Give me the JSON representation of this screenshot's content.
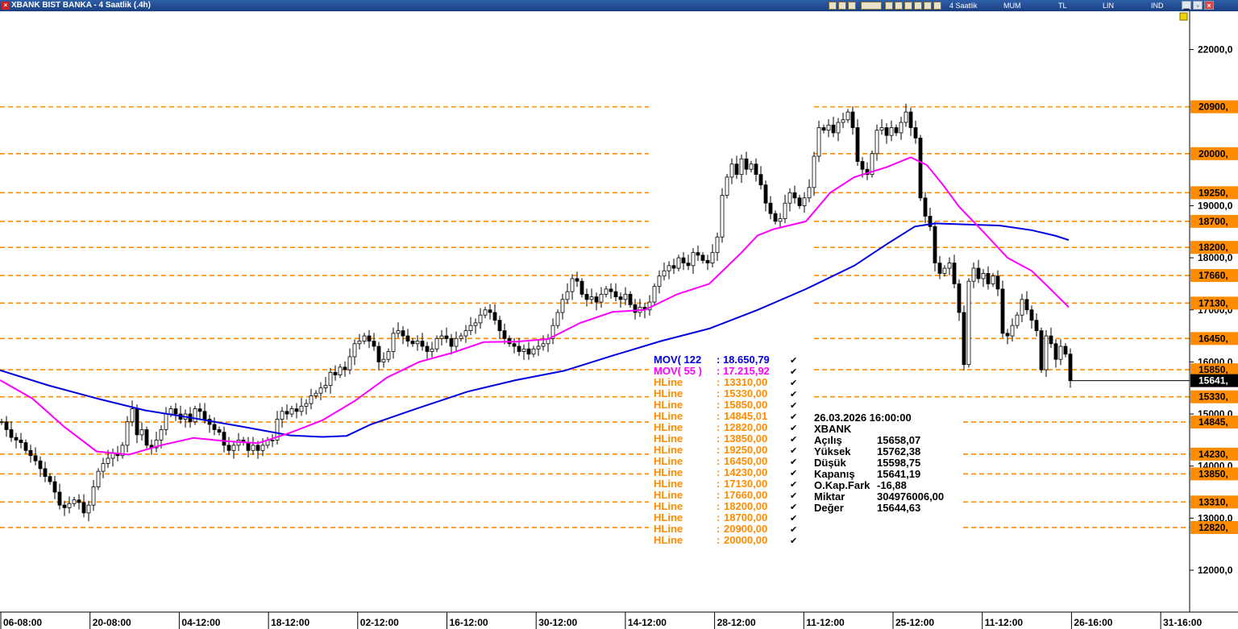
{
  "window": {
    "title": "XBANK BIST BANKA - 4 Saatlik (.4h)",
    "toolbar": {
      "period": "4 Saatlik",
      "style": "MUM",
      "currency": "TL",
      "scale": "LIN",
      "mode": "IND"
    }
  },
  "colors": {
    "background": "#ffffff",
    "hline": "#ff8c00",
    "mov122": "#0000e0",
    "mov55": "#ff00ff",
    "candle_up": "#ffffff",
    "candle_down": "#000000",
    "price_label_bg": "#000000"
  },
  "chart_data": {
    "type": "candlestick",
    "symbol": "XBANK",
    "ylim": [
      11300,
      22800
    ],
    "y_ticks": [
      {
        "v": 22000,
        "t": "22000,0"
      },
      {
        "v": 19000,
        "t": "19000,0"
      },
      {
        "v": 18000,
        "t": "18000,0"
      },
      {
        "v": 17000,
        "t": "17000,0"
      },
      {
        "v": 16000,
        "t": "16000,0"
      },
      {
        "v": 15000,
        "t": "15000,0"
      },
      {
        "v": 14000,
        "t": "14000,0"
      },
      {
        "v": 13000,
        "t": "13000,0"
      },
      {
        "v": 12000,
        "t": "12000,0"
      }
    ],
    "x_ticks": [
      "06-08:00",
      "20-08:00",
      "04-12:00",
      "18-12:00",
      "02-12:00",
      "16-12:00",
      "30-12:00",
      "14-12:00",
      "28-12:00",
      "11-12:00",
      "25-12:00",
      "11-12:00",
      "26-16:00",
      "31-16:00"
    ],
    "close_path": [
      [
        0,
        14850
      ],
      [
        6,
        14700
      ],
      [
        12,
        14550
      ],
      [
        18,
        14500
      ],
      [
        24,
        14450
      ],
      [
        30,
        14300
      ],
      [
        36,
        14200
      ],
      [
        42,
        14100
      ],
      [
        48,
        13950
      ],
      [
        54,
        13800
      ],
      [
        60,
        13700
      ],
      [
        66,
        13500
      ],
      [
        72,
        13250
      ],
      [
        78,
        13200
      ],
      [
        84,
        13280
      ],
      [
        90,
        13350
      ],
      [
        96,
        13300
      ],
      [
        102,
        13100
      ],
      [
        108,
        13250
      ],
      [
        114,
        13600
      ],
      [
        120,
        13900
      ],
      [
        126,
        14050
      ],
      [
        132,
        14150
      ],
      [
        138,
        14250
      ],
      [
        144,
        14200
      ],
      [
        150,
        14400
      ],
      [
        156,
        14850
      ],
      [
        162,
        15100
      ],
      [
        168,
        14600
      ],
      [
        174,
        14700
      ],
      [
        180,
        14400
      ],
      [
        186,
        14350
      ],
      [
        192,
        14500
      ],
      [
        198,
        14700
      ],
      [
        204,
        15000
      ],
      [
        210,
        15100
      ],
      [
        216,
        15000
      ],
      [
        222,
        14900
      ],
      [
        228,
        15000
      ],
      [
        234,
        14850
      ],
      [
        240,
        15100
      ],
      [
        246,
        15050
      ],
      [
        252,
        14900
      ],
      [
        258,
        14800
      ],
      [
        264,
        14700
      ],
      [
        270,
        14650
      ],
      [
        276,
        14400
      ],
      [
        282,
        14300
      ],
      [
        288,
        14400
      ],
      [
        294,
        14500
      ],
      [
        300,
        14450
      ],
      [
        306,
        14300
      ],
      [
        312,
        14400
      ],
      [
        318,
        14300
      ],
      [
        324,
        14400
      ],
      [
        330,
        14500
      ],
      [
        336,
        14500
      ],
      [
        342,
        14900
      ],
      [
        348,
        15050
      ],
      [
        354,
        15000
      ],
      [
        360,
        15100
      ],
      [
        366,
        15050
      ],
      [
        372,
        15150
      ],
      [
        378,
        15200
      ],
      [
        384,
        15350
      ],
      [
        390,
        15400
      ],
      [
        396,
        15500
      ],
      [
        402,
        15550
      ],
      [
        408,
        15800
      ],
      [
        414,
        15750
      ],
      [
        420,
        15900
      ],
      [
        426,
        15850
      ],
      [
        432,
        16100
      ],
      [
        438,
        16350
      ],
      [
        444,
        16400
      ],
      [
        450,
        16500
      ],
      [
        456,
        16400
      ],
      [
        462,
        16300
      ],
      [
        468,
        16000
      ],
      [
        474,
        16050
      ],
      [
        480,
        16200
      ],
      [
        486,
        16550
      ],
      [
        492,
        16600
      ],
      [
        498,
        16500
      ],
      [
        504,
        16400
      ],
      [
        510,
        16350
      ],
      [
        516,
        16400
      ],
      [
        522,
        16300
      ],
      [
        528,
        16200
      ],
      [
        534,
        16250
      ],
      [
        540,
        16450
      ],
      [
        546,
        16500
      ],
      [
        552,
        16450
      ],
      [
        558,
        16300
      ],
      [
        564,
        16450
      ],
      [
        570,
        16500
      ],
      [
        576,
        16600
      ],
      [
        582,
        16700
      ],
      [
        588,
        16750
      ],
      [
        594,
        16900
      ],
      [
        600,
        17000
      ],
      [
        606,
        16950
      ],
      [
        612,
        16800
      ],
      [
        618,
        16600
      ],
      [
        624,
        16450
      ],
      [
        630,
        16350
      ],
      [
        636,
        16300
      ],
      [
        642,
        16200
      ],
      [
        648,
        16250
      ],
      [
        654,
        16150
      ],
      [
        660,
        16250
      ],
      [
        666,
        16300
      ],
      [
        672,
        16350
      ],
      [
        678,
        16450
      ],
      [
        684,
        16700
      ],
      [
        690,
        16950
      ],
      [
        696,
        17200
      ],
      [
        702,
        17350
      ],
      [
        708,
        17600
      ],
      [
        714,
        17550
      ],
      [
        720,
        17300
      ],
      [
        726,
        17200
      ],
      [
        732,
        17250
      ],
      [
        738,
        17150
      ],
      [
        744,
        17300
      ],
      [
        750,
        17400
      ],
      [
        756,
        17350
      ],
      [
        762,
        17250
      ],
      [
        768,
        17200
      ],
      [
        774,
        17300
      ],
      [
        780,
        17100
      ],
      [
        786,
        16950
      ],
      [
        792,
        17050
      ],
      [
        798,
        17000
      ],
      [
        804,
        17150
      ],
      [
        810,
        17450
      ],
      [
        816,
        17650
      ],
      [
        822,
        17750
      ],
      [
        828,
        17850
      ],
      [
        834,
        17800
      ],
      [
        840,
        18000
      ],
      [
        846,
        17900
      ],
      [
        852,
        17850
      ],
      [
        858,
        18100
      ],
      [
        864,
        18050
      ],
      [
        870,
        17950
      ],
      [
        876,
        17900
      ],
      [
        882,
        18100
      ],
      [
        888,
        18400
      ],
      [
        894,
        19200
      ],
      [
        900,
        19550
      ],
      [
        906,
        19800
      ],
      [
        912,
        19600
      ],
      [
        918,
        19900
      ],
      [
        924,
        19700
      ],
      [
        930,
        19800
      ],
      [
        936,
        19600
      ],
      [
        942,
        19400
      ],
      [
        948,
        19050
      ],
      [
        954,
        18850
      ],
      [
        960,
        18700
      ],
      [
        966,
        18750
      ],
      [
        972,
        19050
      ],
      [
        978,
        19250
      ],
      [
        984,
        19150
      ],
      [
        990,
        19000
      ],
      [
        996,
        19150
      ],
      [
        1002,
        19350
      ],
      [
        1008,
        19950
      ],
      [
        1014,
        20500
      ],
      [
        1020,
        20450
      ],
      [
        1026,
        20550
      ],
      [
        1032,
        20400
      ],
      [
        1038,
        20600
      ],
      [
        1044,
        20650
      ],
      [
        1050,
        20800
      ],
      [
        1056,
        20500
      ],
      [
        1062,
        19850
      ],
      [
        1068,
        19700
      ],
      [
        1074,
        19600
      ],
      [
        1080,
        20000
      ],
      [
        1086,
        20450
      ],
      [
        1092,
        20500
      ],
      [
        1098,
        20350
      ],
      [
        1104,
        20500
      ],
      [
        1110,
        20400
      ],
      [
        1116,
        20600
      ],
      [
        1122,
        20800
      ],
      [
        1128,
        20500
      ],
      [
        1134,
        20300
      ],
      [
        1140,
        19150
      ],
      [
        1146,
        18800
      ],
      [
        1152,
        18600
      ],
      [
        1158,
        17900
      ],
      [
        1164,
        17700
      ],
      [
        1170,
        17800
      ],
      [
        1176,
        17900
      ],
      [
        1182,
        17500
      ],
      [
        1188,
        16950
      ],
      [
        1194,
        15950
      ],
      [
        1200,
        17550
      ],
      [
        1206,
        17800
      ],
      [
        1212,
        17600
      ],
      [
        1218,
        17700
      ],
      [
        1224,
        17500
      ],
      [
        1230,
        17650
      ],
      [
        1236,
        17400
      ],
      [
        1242,
        16550
      ],
      [
        1248,
        16500
      ],
      [
        1254,
        16700
      ],
      [
        1260,
        16900
      ],
      [
        1266,
        17200
      ],
      [
        1272,
        17000
      ],
      [
        1278,
        16800
      ],
      [
        1284,
        16600
      ],
      [
        1290,
        15850
      ],
      [
        1296,
        16500
      ],
      [
        1302,
        16350
      ],
      [
        1308,
        16050
      ],
      [
        1314,
        16300
      ],
      [
        1320,
        16150
      ],
      [
        1326,
        15641
      ]
    ],
    "series": [
      {
        "name": "MOV( 122 : 18.650,79",
        "color": "#0000e0",
        "points": [
          [
            0,
            15840
          ],
          [
            60,
            15550
          ],
          [
            120,
            15300
          ],
          [
            180,
            15070
          ],
          [
            240,
            14920
          ],
          [
            300,
            14760
          ],
          [
            360,
            14590
          ],
          [
            400,
            14560
          ],
          [
            430,
            14580
          ],
          [
            460,
            14800
          ],
          [
            520,
            15120
          ],
          [
            580,
            15430
          ],
          [
            640,
            15650
          ],
          [
            700,
            15830
          ],
          [
            760,
            16120
          ],
          [
            820,
            16400
          ],
          [
            880,
            16640
          ],
          [
            940,
            17000
          ],
          [
            1000,
            17400
          ],
          [
            1060,
            17850
          ],
          [
            1100,
            18260
          ],
          [
            1135,
            18600
          ],
          [
            1160,
            18660
          ],
          [
            1200,
            18640
          ],
          [
            1240,
            18620
          ],
          [
            1280,
            18530
          ],
          [
            1310,
            18420
          ],
          [
            1326,
            18340
          ]
        ]
      },
      {
        "name": "MOV( 55 ) : 17.215,92",
        "color": "#ff00ff",
        "points": [
          [
            0,
            15650
          ],
          [
            40,
            15300
          ],
          [
            80,
            14750
          ],
          [
            120,
            14280
          ],
          [
            160,
            14220
          ],
          [
            200,
            14400
          ],
          [
            240,
            14540
          ],
          [
            280,
            14480
          ],
          [
            320,
            14440
          ],
          [
            360,
            14640
          ],
          [
            400,
            14880
          ],
          [
            440,
            15250
          ],
          [
            480,
            15700
          ],
          [
            520,
            16000
          ],
          [
            560,
            16170
          ],
          [
            600,
            16380
          ],
          [
            640,
            16390
          ],
          [
            680,
            16440
          ],
          [
            720,
            16750
          ],
          [
            760,
            16960
          ],
          [
            800,
            17000
          ],
          [
            840,
            17300
          ],
          [
            880,
            17500
          ],
          [
            920,
            18100
          ],
          [
            940,
            18430
          ],
          [
            960,
            18550
          ],
          [
            1000,
            18700
          ],
          [
            1030,
            19250
          ],
          [
            1060,
            19550
          ],
          [
            1100,
            19740
          ],
          [
            1130,
            19930
          ],
          [
            1150,
            19780
          ],
          [
            1170,
            19400
          ],
          [
            1190,
            18980
          ],
          [
            1220,
            18500
          ],
          [
            1250,
            18000
          ],
          [
            1280,
            17750
          ],
          [
            1300,
            17450
          ],
          [
            1326,
            17050
          ]
        ]
      }
    ],
    "hlines": [
      {
        "label": "HLine",
        "value": "13310,00",
        "v": 13310,
        "axis": "13310,"
      },
      {
        "label": "HLine",
        "value": "15330,00",
        "v": 15330,
        "axis": "15330,"
      },
      {
        "label": "HLine",
        "value": "15850,00",
        "v": 15850,
        "axis": "15850,"
      },
      {
        "label": "HLine",
        "value": "14845,01",
        "v": 14845,
        "axis": "14845,"
      },
      {
        "label": "HLine",
        "value": "12820,00",
        "v": 12820,
        "axis": "12820,"
      },
      {
        "label": "HLine",
        "value": "13850,00",
        "v": 13850,
        "axis": "13850,"
      },
      {
        "label": "HLine",
        "value": "19250,00",
        "v": 19250,
        "axis": "19250,"
      },
      {
        "label": "HLine",
        "value": "16450,00",
        "v": 16450,
        "axis": "16450,"
      },
      {
        "label": "HLine",
        "value": "14230,00",
        "v": 14230,
        "axis": "14230,"
      },
      {
        "label": "HLine",
        "value": "17130,00",
        "v": 17130,
        "axis": "17130,"
      },
      {
        "label": "HLine",
        "value": "17660,00",
        "v": 17660,
        "axis": "17660,"
      },
      {
        "label": "HLine",
        "value": "18200,00",
        "v": 18200,
        "axis": "18200,"
      },
      {
        "label": "HLine",
        "value": "18700,00",
        "v": 18700,
        "axis": "18700,"
      },
      {
        "label": "HLine",
        "value": "20900,00",
        "v": 20900,
        "axis": "20900,"
      },
      {
        "label": "HLine",
        "value": "20000,00",
        "v": 20000,
        "axis": "20000,"
      }
    ],
    "last_price": {
      "v": 15641,
      "label": "15641,"
    },
    "legend": [
      {
        "name": "MOV( 122",
        "value": ": 18.650,79",
        "color": "#0000e0"
      },
      {
        "name": "MOV( 55 )",
        "value": ": 17.215,92",
        "color": "#ff00ff"
      }
    ],
    "info": {
      "datetime": "26.03.2026  16:00:00",
      "symbol": "XBANK",
      "rows": [
        {
          "k": "Açılış",
          "v": "15658,07"
        },
        {
          "k": "Yüksek",
          "v": "15762,38"
        },
        {
          "k": "Düşük",
          "v": "15598,75"
        },
        {
          "k": "Kapanış",
          "v": "15641,19"
        },
        {
          "k": "O.Kap.Fark",
          "v": "-16,88"
        },
        {
          "k": "Miktar",
          "v": "304976006,00"
        },
        {
          "k": "Değer",
          "v": "15644,63"
        }
      ]
    },
    "check_mark": "✔"
  }
}
